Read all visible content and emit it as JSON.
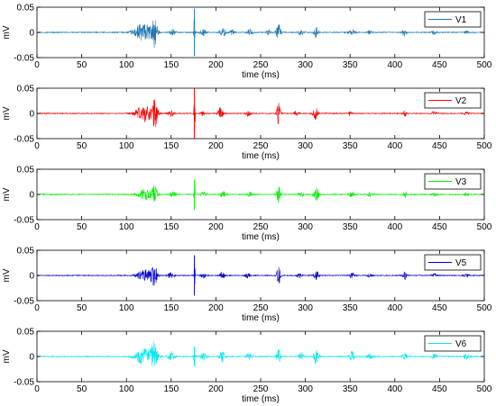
{
  "chart_data": [
    {
      "type": "line",
      "xlabel": "time (ms)",
      "ylabel": "mV",
      "xlim": [
        0,
        500
      ],
      "ylim": [
        -0.05,
        0.05
      ],
      "xticks": [
        "0",
        "50",
        "100",
        "150",
        "200",
        "250",
        "300",
        "350",
        "400",
        "450",
        "500"
      ],
      "yticks": [
        "0.05",
        "0",
        "-0.05"
      ],
      "grid": false,
      "legend": "top-right",
      "series": [
        {
          "name": "V1",
          "color": "#1f77b4"
        }
      ],
      "bursts": [
        {
          "t": 118,
          "amp": 0.019,
          "width": 14
        },
        {
          "t": 131,
          "amp": 0.03,
          "width": 5
        },
        {
          "t": 152,
          "amp": 0.007,
          "width": 5
        },
        {
          "t": 176,
          "amp": 0.047,
          "width": 1
        },
        {
          "t": 186,
          "amp": 0.006,
          "width": 5
        },
        {
          "t": 208,
          "amp": 0.009,
          "width": 5
        },
        {
          "t": 218,
          "amp": 0.005,
          "width": 4
        },
        {
          "t": 238,
          "amp": 0.006,
          "width": 5
        },
        {
          "t": 258,
          "amp": 0.005,
          "width": 4
        },
        {
          "t": 270,
          "amp": 0.016,
          "width": 4
        },
        {
          "t": 295,
          "amp": 0.006,
          "width": 4
        },
        {
          "t": 312,
          "amp": 0.011,
          "width": 4
        },
        {
          "t": 352,
          "amp": 0.007,
          "width": 5
        },
        {
          "t": 372,
          "amp": 0.004,
          "width": 4
        },
        {
          "t": 411,
          "amp": 0.008,
          "width": 4
        },
        {
          "t": 444,
          "amp": 0.004,
          "width": 4
        },
        {
          "t": 480,
          "amp": 0.003,
          "width": 4
        }
      ]
    },
    {
      "type": "line",
      "xlabel": "time (ms)",
      "ylabel": "mV",
      "xlim": [
        0,
        500
      ],
      "ylim": [
        -0.05,
        0.05
      ],
      "xticks": [
        "0",
        "50",
        "100",
        "150",
        "200",
        "250",
        "300",
        "350",
        "400",
        "450",
        "500"
      ],
      "yticks": [
        "0.05",
        "0",
        "-0.05"
      ],
      "grid": false,
      "legend": "top-right",
      "series": [
        {
          "name": "V2",
          "color": "#ff0000"
        }
      ],
      "bursts": [
        {
          "t": 120,
          "amp": 0.017,
          "width": 14
        },
        {
          "t": 132,
          "amp": 0.027,
          "width": 5
        },
        {
          "t": 150,
          "amp": 0.006,
          "width": 5
        },
        {
          "t": 176,
          "amp": 0.05,
          "width": 1
        },
        {
          "t": 185,
          "amp": 0.005,
          "width": 4
        },
        {
          "t": 205,
          "amp": 0.012,
          "width": 4
        },
        {
          "t": 236,
          "amp": 0.006,
          "width": 4
        },
        {
          "t": 270,
          "amp": 0.022,
          "width": 3
        },
        {
          "t": 290,
          "amp": 0.005,
          "width": 4
        },
        {
          "t": 311,
          "amp": 0.014,
          "width": 4
        },
        {
          "t": 350,
          "amp": 0.005,
          "width": 4
        },
        {
          "t": 411,
          "amp": 0.007,
          "width": 3
        },
        {
          "t": 444,
          "amp": 0.004,
          "width": 4
        },
        {
          "t": 480,
          "amp": 0.003,
          "width": 4
        }
      ]
    },
    {
      "type": "line",
      "xlabel": "time (ms)",
      "ylabel": "mV",
      "xlim": [
        0,
        500
      ],
      "ylim": [
        -0.05,
        0.05
      ],
      "xticks": [
        "0",
        "50",
        "100",
        "150",
        "200",
        "250",
        "300",
        "350",
        "400",
        "450",
        "500"
      ],
      "yticks": [
        "0.05",
        "0",
        "-0.05"
      ],
      "grid": false,
      "legend": "top-right",
      "series": [
        {
          "name": "V3",
          "color": "#00ee00"
        }
      ],
      "bursts": [
        {
          "t": 120,
          "amp": 0.01,
          "width": 12
        },
        {
          "t": 131,
          "amp": 0.02,
          "width": 5
        },
        {
          "t": 152,
          "amp": 0.006,
          "width": 5
        },
        {
          "t": 176,
          "amp": 0.03,
          "width": 1
        },
        {
          "t": 186,
          "amp": 0.005,
          "width": 5
        },
        {
          "t": 208,
          "amp": 0.008,
          "width": 4
        },
        {
          "t": 238,
          "amp": 0.005,
          "width": 4
        },
        {
          "t": 270,
          "amp": 0.018,
          "width": 3
        },
        {
          "t": 295,
          "amp": 0.005,
          "width": 4
        },
        {
          "t": 312,
          "amp": 0.014,
          "width": 4
        },
        {
          "t": 352,
          "amp": 0.006,
          "width": 4
        },
        {
          "t": 372,
          "amp": 0.004,
          "width": 4
        },
        {
          "t": 411,
          "amp": 0.008,
          "width": 3
        },
        {
          "t": 444,
          "amp": 0.004,
          "width": 4
        },
        {
          "t": 480,
          "amp": 0.003,
          "width": 4
        }
      ]
    },
    {
      "type": "line",
      "xlabel": "time (ms)",
      "ylabel": "mV",
      "xlim": [
        0,
        500
      ],
      "ylim": [
        -0.05,
        0.05
      ],
      "xticks": [
        "0",
        "50",
        "100",
        "150",
        "200",
        "250",
        "300",
        "350",
        "400",
        "450",
        "500"
      ],
      "yticks": [
        "0.05",
        "0",
        "-0.05"
      ],
      "grid": false,
      "legend": "top-right",
      "series": [
        {
          "name": "V5",
          "color": "#0000cc"
        }
      ],
      "bursts": [
        {
          "t": 120,
          "amp": 0.012,
          "width": 12
        },
        {
          "t": 131,
          "amp": 0.022,
          "width": 5
        },
        {
          "t": 150,
          "amp": 0.006,
          "width": 5
        },
        {
          "t": 176,
          "amp": 0.04,
          "width": 1
        },
        {
          "t": 186,
          "amp": 0.005,
          "width": 5
        },
        {
          "t": 207,
          "amp": 0.008,
          "width": 4
        },
        {
          "t": 236,
          "amp": 0.006,
          "width": 4
        },
        {
          "t": 270,
          "amp": 0.019,
          "width": 3
        },
        {
          "t": 293,
          "amp": 0.005,
          "width": 4
        },
        {
          "t": 312,
          "amp": 0.01,
          "width": 4
        },
        {
          "t": 352,
          "amp": 0.006,
          "width": 4
        },
        {
          "t": 372,
          "amp": 0.004,
          "width": 4
        },
        {
          "t": 411,
          "amp": 0.008,
          "width": 3
        },
        {
          "t": 444,
          "amp": 0.004,
          "width": 4
        },
        {
          "t": 480,
          "amp": 0.003,
          "width": 4
        }
      ]
    },
    {
      "type": "line",
      "xlabel": "time (ms)",
      "ylabel": "mV",
      "xlim": [
        0,
        500
      ],
      "ylim": [
        -0.05,
        0.05
      ],
      "xticks": [
        "0",
        "50",
        "100",
        "150",
        "200",
        "250",
        "300",
        "350",
        "400",
        "450",
        "500"
      ],
      "yticks": [
        "0.05",
        "0",
        "-0.05"
      ],
      "grid": false,
      "legend": "top-right",
      "series": [
        {
          "name": "V6",
          "color": "#00e5ee"
        }
      ],
      "bursts": [
        {
          "t": 120,
          "amp": 0.018,
          "width": 14
        },
        {
          "t": 131,
          "amp": 0.026,
          "width": 5
        },
        {
          "t": 150,
          "amp": 0.01,
          "width": 5
        },
        {
          "t": 176,
          "amp": 0.02,
          "width": 1
        },
        {
          "t": 186,
          "amp": 0.008,
          "width": 5
        },
        {
          "t": 207,
          "amp": 0.012,
          "width": 4
        },
        {
          "t": 237,
          "amp": 0.008,
          "width": 4
        },
        {
          "t": 270,
          "amp": 0.016,
          "width": 3
        },
        {
          "t": 295,
          "amp": 0.008,
          "width": 4
        },
        {
          "t": 312,
          "amp": 0.016,
          "width": 4
        },
        {
          "t": 352,
          "amp": 0.01,
          "width": 4
        },
        {
          "t": 372,
          "amp": 0.006,
          "width": 4
        },
        {
          "t": 411,
          "amp": 0.01,
          "width": 3
        },
        {
          "t": 444,
          "amp": 0.006,
          "width": 4
        },
        {
          "t": 480,
          "amp": 0.005,
          "width": 4
        }
      ]
    }
  ]
}
